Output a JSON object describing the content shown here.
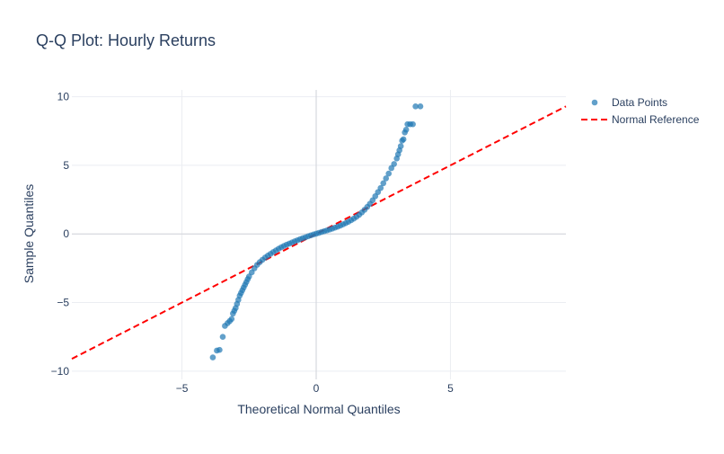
{
  "chart_data": {
    "type": "scatter",
    "title": "Q-Q Plot: Hourly Returns",
    "xlabel": "Theoretical Normal Quantiles",
    "ylabel": "Sample Quantiles",
    "xlim": [
      -9.1,
      9.3
    ],
    "ylim": [
      -10.6,
      10.5
    ],
    "xticks": [
      -5,
      0,
      5
    ],
    "xtick_labels": [
      "−5",
      "0",
      "5"
    ],
    "yticks": [
      -10,
      -5,
      0,
      5,
      10
    ],
    "ytick_labels": [
      "−10",
      "−5",
      "0",
      "5",
      "10"
    ],
    "grid": true,
    "legend_position": "top-right",
    "series": [
      {
        "name": "Data Points",
        "mode": "markers",
        "color": "#1f77b4",
        "x": [
          -3.85,
          -3.7,
          -3.6,
          -3.48,
          -3.4,
          -3.3,
          -3.22,
          -3.15,
          -3.1,
          -3.05,
          -3.0,
          -2.95,
          -2.9,
          -2.85,
          -2.8,
          -2.75,
          -2.7,
          -2.65,
          -2.6,
          -2.55,
          -2.5,
          -2.4,
          -2.3,
          -2.2,
          -2.1,
          -2.0,
          -1.9,
          -1.8,
          -1.7,
          -1.6,
          -1.5,
          -1.4,
          -1.3,
          -1.2,
          -1.1,
          -1.0,
          -0.9,
          -0.8,
          -0.7,
          -0.6,
          -0.5,
          -0.4,
          -0.3,
          -0.2,
          -0.1,
          0.0,
          0.1,
          0.2,
          0.3,
          0.4,
          0.5,
          0.6,
          0.7,
          0.8,
          0.9,
          1.0,
          1.1,
          1.2,
          1.3,
          1.4,
          1.5,
          1.6,
          1.7,
          1.8,
          1.9,
          2.0,
          2.1,
          2.2,
          2.3,
          2.4,
          2.5,
          2.6,
          2.7,
          2.8,
          2.9,
          3.0,
          3.05,
          3.1,
          3.15,
          3.2,
          3.25,
          3.3,
          3.35,
          3.4,
          3.5,
          3.6,
          3.7,
          3.88
        ],
        "y": [
          -9.0,
          -8.5,
          -8.45,
          -7.5,
          -6.7,
          -6.5,
          -6.35,
          -6.2,
          -5.8,
          -5.6,
          -5.4,
          -5.1,
          -4.8,
          -4.5,
          -4.3,
          -4.1,
          -3.9,
          -3.7,
          -3.5,
          -3.3,
          -3.1,
          -2.8,
          -2.5,
          -2.25,
          -2.05,
          -1.88,
          -1.72,
          -1.58,
          -1.45,
          -1.32,
          -1.2,
          -1.08,
          -0.97,
          -0.87,
          -0.78,
          -0.7,
          -0.62,
          -0.54,
          -0.46,
          -0.38,
          -0.31,
          -0.24,
          -0.17,
          -0.1,
          -0.04,
          0.02,
          0.08,
          0.14,
          0.2,
          0.26,
          0.32,
          0.39,
          0.46,
          0.53,
          0.61,
          0.7,
          0.79,
          0.89,
          1.0,
          1.12,
          1.25,
          1.4,
          1.57,
          1.76,
          1.97,
          2.2,
          2.45,
          2.75,
          3.05,
          3.35,
          3.7,
          4.05,
          4.4,
          4.8,
          5.1,
          5.5,
          5.8,
          6.1,
          6.4,
          6.8,
          6.9,
          7.4,
          7.6,
          8.0,
          8.0,
          8.0,
          9.3,
          9.3
        ]
      },
      {
        "name": "Normal Reference",
        "mode": "lines",
        "dash": "dash",
        "color": "#ff0000",
        "x": [
          -9.1,
          9.3
        ],
        "y": [
          -9.1,
          9.3
        ]
      }
    ]
  }
}
